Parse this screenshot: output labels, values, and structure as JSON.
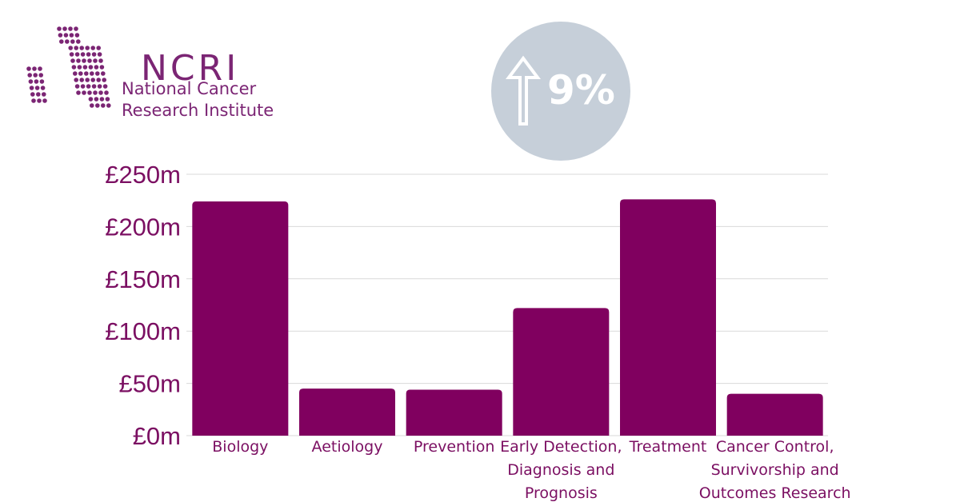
{
  "logo": {
    "acronym": "NCRI",
    "name_line1": "National Cancer",
    "name_line2": "Research Institute"
  },
  "badge": {
    "icon": "up-arrow-icon",
    "value": "9%"
  },
  "colors": {
    "bar": "#80005f",
    "brand": "#7b2574",
    "badge_bg": "#c6cfd9",
    "grid": "#d9d9d9"
  },
  "chart_data": {
    "type": "bar",
    "title": "",
    "xlabel": "",
    "ylabel": "",
    "ylim": [
      0,
      250
    ],
    "yticks": [
      0,
      50,
      100,
      150,
      200,
      250
    ],
    "ytick_labels": [
      "£0m",
      "£50m",
      "£100m",
      "£150m",
      "£200m",
      "£250m"
    ],
    "grid": true,
    "categories": [
      [
        "Biology"
      ],
      [
        "Aetiology"
      ],
      [
        "Prevention"
      ],
      [
        "Early Detection,",
        "Diagnosis and",
        "Prognosis"
      ],
      [
        "Treatment"
      ],
      [
        "Cancer Control,",
        "Survivorship and",
        "Outcomes Research"
      ]
    ],
    "values": [
      224,
      45,
      44,
      122,
      226,
      40
    ]
  }
}
